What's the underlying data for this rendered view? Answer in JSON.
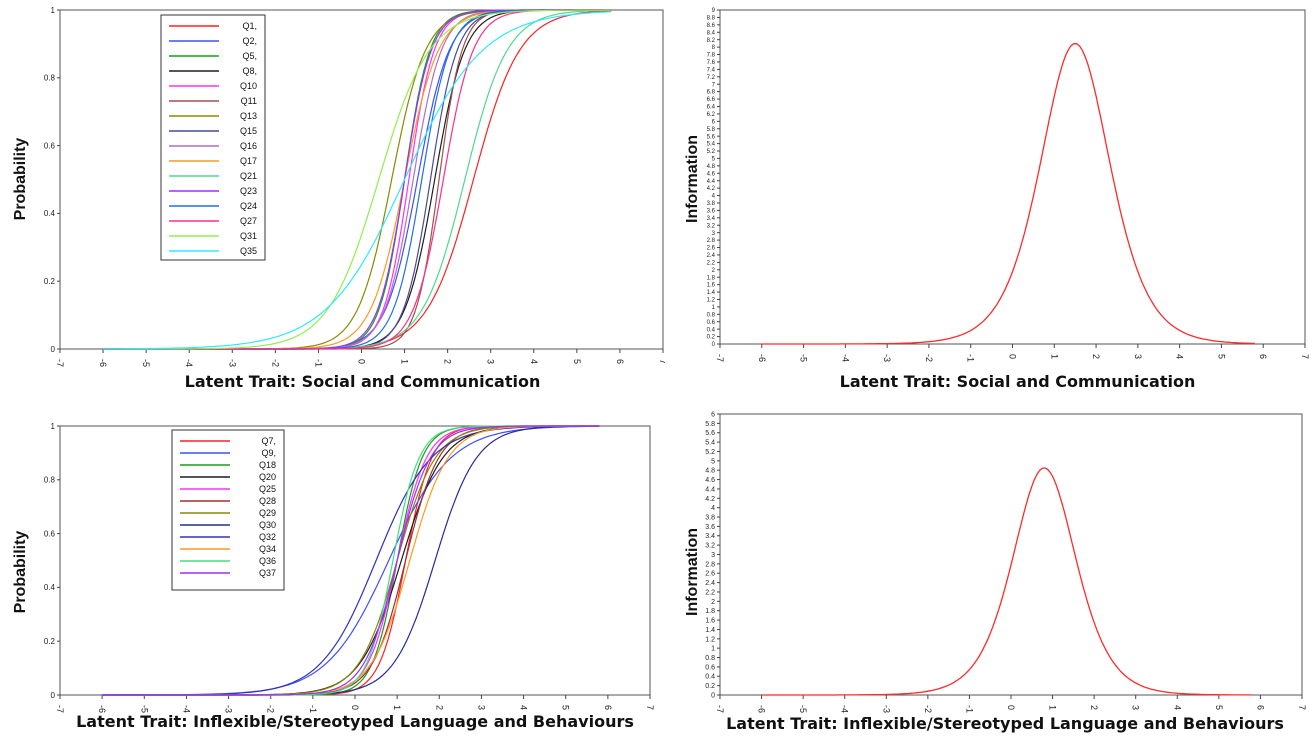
{
  "chart_data": [
    {
      "id": "icc1",
      "type": "line",
      "xlabel": "Latent Trait: Social and Communication",
      "ylabel": "Probability",
      "xlim": [
        -7,
        7
      ],
      "ylim": [
        0,
        1
      ],
      "xticks": [
        "-7",
        "-6",
        "-5",
        "-4",
        "-3",
        "-2",
        "-1",
        "0",
        "1",
        "2",
        "3",
        "4",
        "5",
        "6",
        "7"
      ],
      "yticks": [
        "0",
        "0.2",
        "0.4",
        "0.6",
        "0.8",
        "1"
      ],
      "legend": "top-left",
      "curve_x_range": [
        -6,
        5.8
      ],
      "series": [
        {
          "name": "Q1,",
          "color": "#ff2020",
          "a": 1.1,
          "b": 2.6
        },
        {
          "name": "Q2,",
          "color": "#3c50ff",
          "a": 1.6,
          "b": 1.3
        },
        {
          "name": "Q5,",
          "color": "#14a014",
          "a": 2.0,
          "b": 1.0
        },
        {
          "name": "Q8,",
          "color": "#1e1e1e",
          "a": 1.7,
          "b": 1.7
        },
        {
          "name": "Q10",
          "color": "#ff30ff",
          "a": 2.0,
          "b": 1.1
        },
        {
          "name": "Q11",
          "color": "#a05050",
          "a": 2.2,
          "b": 1.8
        },
        {
          "name": "Q13",
          "color": "#8a8a00",
          "a": 1.5,
          "b": 0.7
        },
        {
          "name": "Q15",
          "color": "#4a4a96",
          "a": 1.9,
          "b": 1.6
        },
        {
          "name": "Q16",
          "color": "#b070c0",
          "a": 1.8,
          "b": 1.2
        },
        {
          "name": "Q17",
          "color": "#ff9a20",
          "a": 1.5,
          "b": 1.0
        },
        {
          "name": "Q21",
          "color": "#50d890",
          "a": 1.2,
          "b": 2.4
        },
        {
          "name": "Q23",
          "color": "#9a30ff",
          "a": 1.9,
          "b": 1.0
        },
        {
          "name": "Q24",
          "color": "#2070e0",
          "a": 1.8,
          "b": 1.4
        },
        {
          "name": "Q27",
          "color": "#ff3080",
          "a": 1.7,
          "b": 1.9
        },
        {
          "name": "Q31",
          "color": "#90ee50",
          "a": 1.0,
          "b": 0.4
        },
        {
          "name": "Q35",
          "color": "#30e8ff",
          "a": 0.65,
          "b": 1.0
        }
      ]
    },
    {
      "id": "info1",
      "type": "line",
      "xlabel": "Latent Trait: Social and Communication",
      "ylabel": "Information",
      "xlim": [
        -7,
        7
      ],
      "ylim": [
        0,
        9
      ],
      "xticks": [
        "-7",
        "-6",
        "-5",
        "-4",
        "-3",
        "-2",
        "-1",
        "0",
        "1",
        "2",
        "3",
        "4",
        "5",
        "6",
        "7"
      ],
      "yticks": [
        "0",
        "0.2",
        "0.4",
        "0.6",
        "0.8",
        "1",
        "1.2",
        "1.4",
        "1.6",
        "1.8",
        "2",
        "2.2",
        "2.4",
        "2.6",
        "2.8",
        "3",
        "3.2",
        "3.4",
        "3.6",
        "3.8",
        "4",
        "4.2",
        "4.4",
        "4.6",
        "4.8",
        "5",
        "5.2",
        "5.4",
        "5.6",
        "5.8",
        "6",
        "6.2",
        "6.4",
        "6.6",
        "6.8",
        "7",
        "7.2",
        "7.4",
        "7.6",
        "7.8",
        "8",
        "8.2",
        "8.4",
        "8.6",
        "8.8",
        "9"
      ],
      "curve_color": "#ff2a2a",
      "peak": {
        "x": 1.5,
        "y": 8.1
      },
      "width": 1.05,
      "curve_x_range": [
        -6,
        5.8
      ]
    },
    {
      "id": "icc2",
      "type": "line",
      "xlabel": "Latent Trait: Inflexible/Stereotyped Language and Behaviours",
      "ylabel": "Probability",
      "xlim": [
        -7,
        7
      ],
      "ylim": [
        0,
        1
      ],
      "xticks": [
        "-7",
        "-6",
        "-5",
        "-4",
        "-3",
        "-2",
        "-1",
        "0",
        "1",
        "2",
        "3",
        "4",
        "5",
        "6",
        "7"
      ],
      "yticks": [
        "0",
        "0.2",
        "0.4",
        "0.6",
        "0.8",
        "1"
      ],
      "legend": "top-left",
      "curve_x_range": [
        -6,
        5.8
      ],
      "series": [
        {
          "name": "Q7,",
          "color": "#ff2020",
          "a": 1.9,
          "b": 1.2
        },
        {
          "name": "Q9,",
          "color": "#3c50ff",
          "a": 0.8,
          "b": 0.8
        },
        {
          "name": "Q18",
          "color": "#14a014",
          "a": 2.0,
          "b": 1.0
        },
        {
          "name": "Q20",
          "color": "#1e1e1e",
          "a": 1.2,
          "b": 1.1
        },
        {
          "name": "Q25",
          "color": "#ff30ff",
          "a": 1.7,
          "b": 1.0
        },
        {
          "name": "Q28",
          "color": "#a03030",
          "a": 1.5,
          "b": 1.2
        },
        {
          "name": "Q29",
          "color": "#8a8a00",
          "a": 1.3,
          "b": 1.0
        },
        {
          "name": "Q30",
          "color": "#2a2a96",
          "a": 1.2,
          "b": 1.9
        },
        {
          "name": "Q32",
          "color": "#3030c0",
          "a": 0.9,
          "b": 0.5
        },
        {
          "name": "Q34",
          "color": "#ff9a20",
          "a": 1.3,
          "b": 1.3
        },
        {
          "name": "Q36",
          "color": "#40e080",
          "a": 1.9,
          "b": 0.9
        },
        {
          "name": "Q37",
          "color": "#9a30ff",
          "a": 1.5,
          "b": 1.0
        }
      ]
    },
    {
      "id": "info2",
      "type": "line",
      "xlabel": "Latent Trait: Inflexible/Stereotyped Language and Behaviours",
      "ylabel": "Information",
      "xlim": [
        -7,
        7
      ],
      "ylim": [
        0,
        6
      ],
      "xticks": [
        "-7",
        "-6",
        "-5",
        "-4",
        "-3",
        "-2",
        "-1",
        "0",
        "1",
        "2",
        "3",
        "4",
        "5",
        "6",
        "7"
      ],
      "yticks": [
        "0",
        "0.2",
        "0.4",
        "0.6",
        "0.8",
        "1",
        "1.2",
        "1.4",
        "1.6",
        "1.8",
        "2",
        "2.2",
        "2.4",
        "2.6",
        "2.8",
        "3",
        "3.2",
        "3.4",
        "3.6",
        "3.8",
        "4",
        "4.2",
        "4.4",
        "4.6",
        "4.8",
        "5",
        "5.2",
        "5.4",
        "5.6",
        "5.8",
        "6"
      ],
      "curve_color": "#ff2a2a",
      "peak": {
        "x": 0.8,
        "y": 4.85
      },
      "width": 1.15,
      "curve_x_range": [
        -6,
        5.8
      ]
    }
  ]
}
